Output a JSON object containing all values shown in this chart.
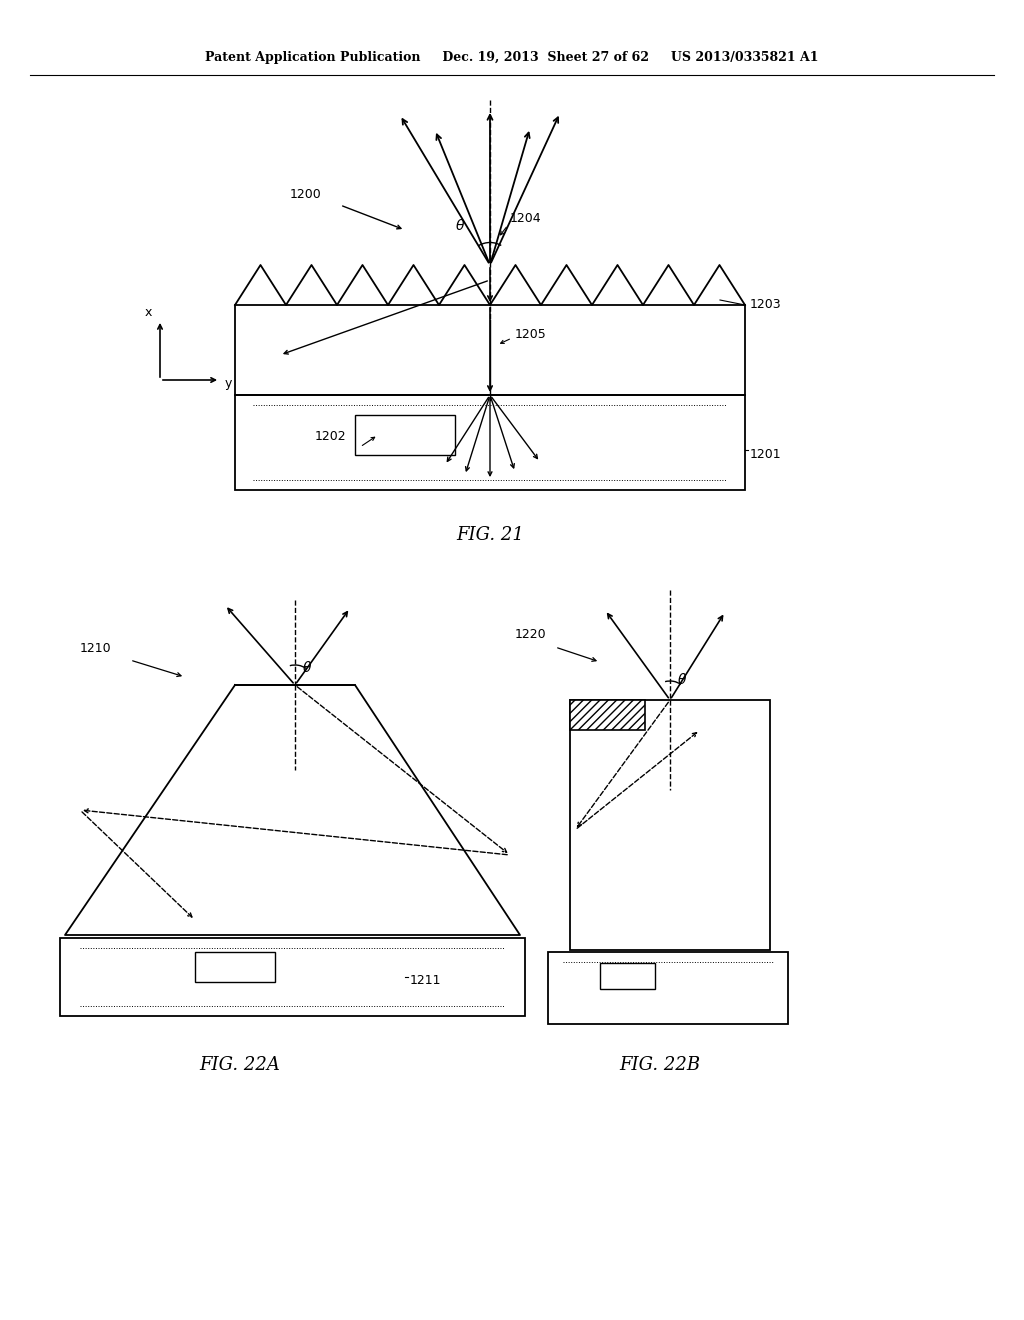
{
  "bg_color": "#ffffff",
  "line_color": "#000000",
  "header": "Patent Application Publication     Dec. 19, 2013  Sheet 27 of 62     US 2013/0335821 A1",
  "fig21_caption": "FIG. 21",
  "fig22a_caption": "FIG. 22A",
  "fig22b_caption": "FIG. 22B"
}
